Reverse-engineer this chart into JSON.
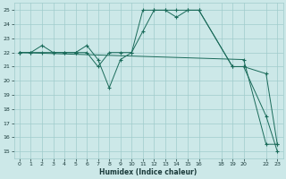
{
  "xlabel": "Humidex (Indice chaleur)",
  "xlim": [
    -0.5,
    23.5
  ],
  "ylim": [
    14.5,
    25.5
  ],
  "xticks": [
    0,
    1,
    2,
    3,
    4,
    5,
    6,
    7,
    8,
    9,
    10,
    11,
    12,
    13,
    14,
    15,
    16,
    18,
    19,
    20,
    22,
    23
  ],
  "yticks": [
    15,
    16,
    17,
    18,
    19,
    20,
    21,
    22,
    23,
    24,
    25
  ],
  "bg_color": "#cce8e8",
  "grid_color": "#a0cccc",
  "line_color": "#1a6b5a",
  "series": [
    {
      "x": [
        0,
        1,
        2,
        3,
        4,
        5,
        6,
        7,
        8,
        9,
        10,
        11,
        12,
        13,
        14,
        15,
        16,
        19,
        20,
        22,
        23
      ],
      "y": [
        22,
        22,
        22.5,
        22,
        22,
        22,
        22.5,
        21.5,
        19.5,
        21.5,
        22,
        25,
        25,
        25,
        24.5,
        25,
        25,
        21,
        21,
        20.5,
        15.5
      ]
    },
    {
      "x": [
        0,
        1,
        2,
        3,
        4,
        5,
        6,
        7,
        8,
        9,
        10,
        11,
        12,
        13,
        14,
        15,
        16,
        19,
        20,
        22,
        23
      ],
      "y": [
        22,
        22,
        22,
        22,
        22,
        22,
        22,
        21,
        22,
        22,
        22,
        23.5,
        25,
        25,
        25,
        25,
        25,
        21,
        21,
        17.5,
        15
      ]
    },
    {
      "x": [
        0,
        20,
        22,
        23
      ],
      "y": [
        22,
        21.5,
        15.5,
        15.5
      ]
    }
  ]
}
